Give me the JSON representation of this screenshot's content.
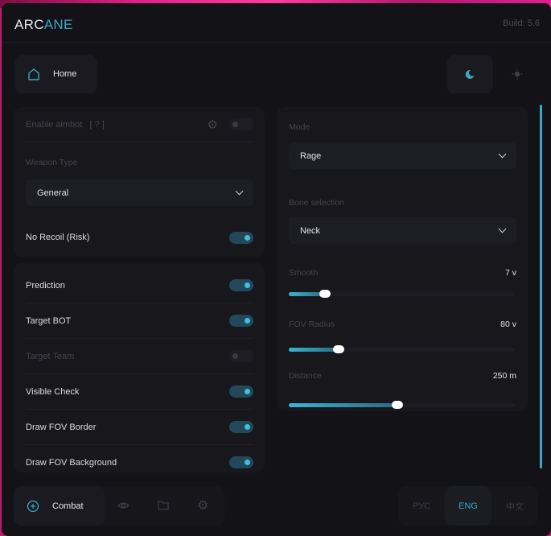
{
  "header": {
    "logo_part1": "ARC",
    "logo_part2": "ANE",
    "build": "Build: 5.6"
  },
  "top_nav": {
    "home_label": "Home",
    "theme": {
      "active": "dark"
    }
  },
  "aimbot_panel": {
    "enable_label": "Enable aimbot",
    "enable_help": "[ ? ]",
    "enabled": false,
    "weapon_type_label": "Weapon Type",
    "weapon_type_value": "General",
    "no_recoil_label": "No Recoil (Risk)",
    "no_recoil": true
  },
  "options_panel": {
    "items": [
      {
        "label": "Prediction",
        "on": true
      },
      {
        "label": "Target BOT",
        "on": true
      },
      {
        "label": "Target Team",
        "on": false
      },
      {
        "label": "Visible Check",
        "on": true
      },
      {
        "label": "Draw FOV Border",
        "on": true
      },
      {
        "label": "Draw FOV Background",
        "on": true
      }
    ]
  },
  "settings_panel": {
    "mode_label": "Mode",
    "mode_value": "Rage",
    "bone_label": "Bone selection",
    "bone_value": "Neck",
    "sliders": [
      {
        "label": "Smooth",
        "value": "7 v",
        "fill_fraction": 0.16
      },
      {
        "label": "FOV Radius",
        "value": "80 v",
        "fill_fraction": 0.22
      },
      {
        "label": "Distance",
        "value": "250 m",
        "fill_fraction": 0.48
      }
    ]
  },
  "bottom_nav": {
    "active_label": "Combat",
    "icons": [
      "crosshair-icon",
      "eye-icon",
      "folder-icon",
      "gear-icon"
    ]
  },
  "languages": {
    "items": [
      "РУС",
      "ENG",
      "中文"
    ],
    "active": "ENG"
  },
  "colors": {
    "accent": "#3aa8c4",
    "background": "#131317",
    "panel": "#17171c"
  }
}
